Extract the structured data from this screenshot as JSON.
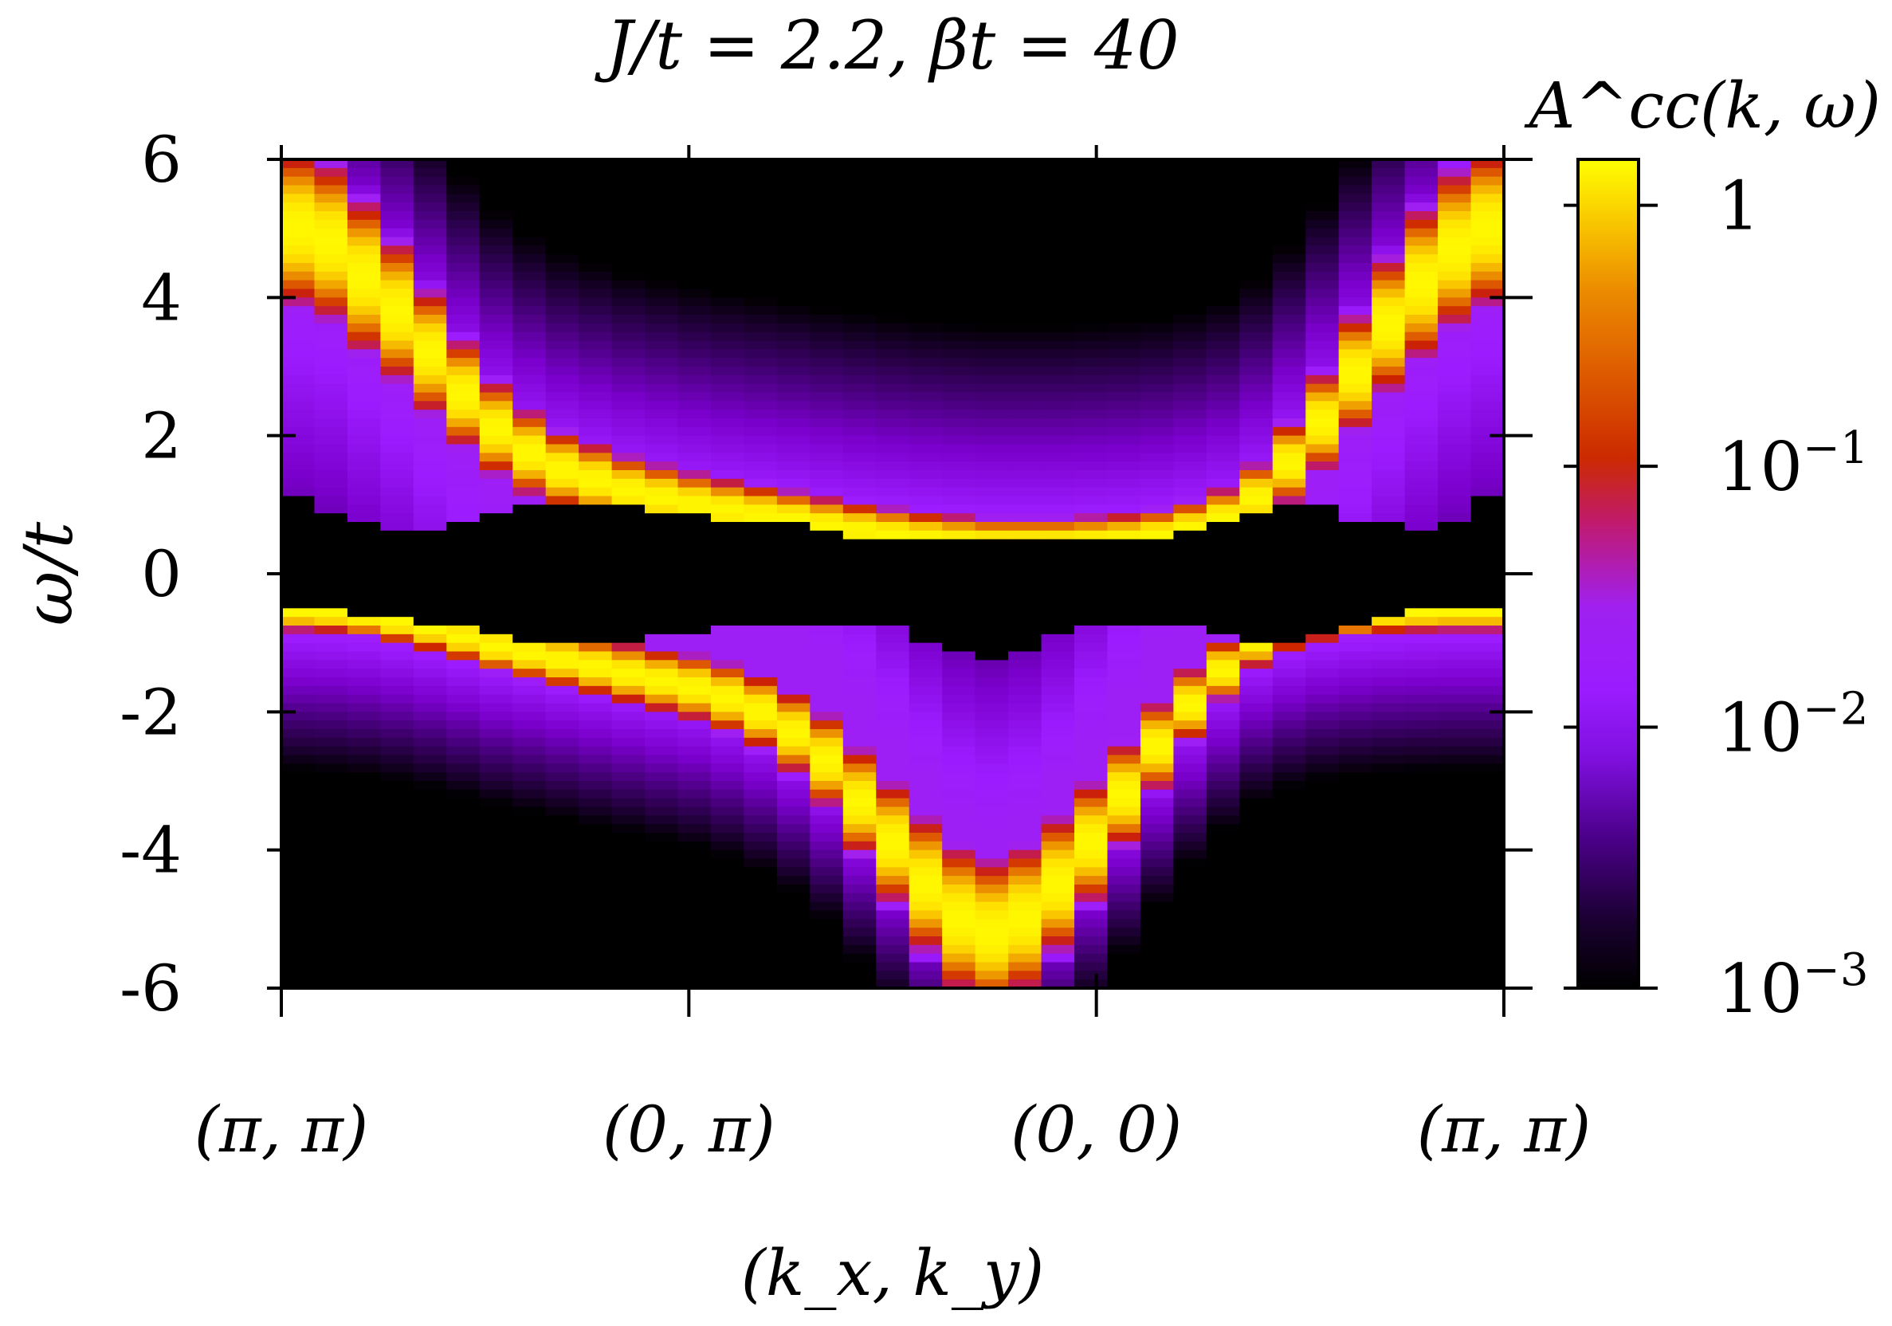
{
  "chart_data": {
    "type": "heatmap",
    "title": "J/t = 2.2, βt = 40",
    "xlabel": "(k_x, k_y)",
    "ylabel": "ω/t",
    "colorbar_label": "A^cc(k, ω)",
    "x_tick_labels": [
      "(π, π)",
      "(0, π)",
      "(0, 0)",
      "(π, π)"
    ],
    "x_path_segments": [
      12,
      12,
      12
    ],
    "y_ticks": [
      6,
      4,
      2,
      0,
      -2,
      -4,
      -6
    ],
    "y_tick_labels": [
      "6",
      "4",
      "2",
      "0",
      "-2",
      "-4",
      "-6"
    ],
    "ylim": [
      -6,
      6
    ],
    "colorbar_scale": "log",
    "colorbar_range": [
      0.001,
      1.5
    ],
    "colorbar_ticks": [
      1,
      0.1,
      0.01,
      0.001
    ],
    "colorbar_tick_labels": [
      {
        "base": "1",
        "exp": ""
      },
      {
        "base": "10",
        "exp": "−1"
      },
      {
        "base": "10",
        "exp": "−2"
      },
      {
        "base": "10",
        "exp": "−3"
      }
    ],
    "colormap": [
      "#000000",
      "#3a0066",
      "#7a00cc",
      "#9c1cff",
      "#a020f0",
      "#c01a66",
      "#cc2200",
      "#e06000",
      "#f0a000",
      "#ffe000",
      "#ffff00"
    ],
    "upper_band_peak_omega": [
      5.0,
      4.8,
      4.3,
      3.8,
      3.2,
      2.6,
      2.1,
      1.75,
      1.5,
      1.35,
      1.2,
      1.1,
      1.0,
      0.92,
      0.85,
      0.78,
      0.7,
      0.63,
      0.57,
      0.52,
      0.48,
      0.45,
      0.45,
      0.45,
      0.47,
      0.5,
      0.55,
      0.65,
      0.8,
      1.1,
      1.6,
      2.2,
      2.9,
      3.6,
      4.2,
      4.7,
      5.0
    ],
    "lower_band_peak_omega": [
      -0.55,
      -0.57,
      -0.62,
      -0.7,
      -0.8,
      -0.92,
      -1.05,
      -1.15,
      -1.25,
      -1.35,
      -1.45,
      -1.55,
      -1.65,
      -1.8,
      -2.0,
      -2.3,
      -2.7,
      -3.3,
      -3.9,
      -4.5,
      -5.0,
      -5.2,
      -5.0,
      -4.5,
      -3.9,
      -3.2,
      -2.5,
      -1.9,
      -1.4,
      -1.0,
      -0.8,
      -0.68,
      -0.62,
      -0.58,
      -0.56,
      -0.55,
      -0.55
    ],
    "gap_upper_edge_omega": [
      1.1,
      0.9,
      0.75,
      0.65,
      0.6,
      0.7,
      0.85,
      0.95,
      1.0,
      1.0,
      0.95,
      0.9,
      0.85,
      0.8,
      0.75,
      0.7,
      0.6,
      0.55,
      0.5,
      0.47,
      0.45,
      0.45,
      0.45,
      0.45,
      0.47,
      0.5,
      0.55,
      0.65,
      0.8,
      0.9,
      1.0,
      0.95,
      0.8,
      0.7,
      0.65,
      0.8,
      1.1
    ],
    "gap_lower_edge_omega": [
      -0.5,
      -0.55,
      -0.6,
      -0.65,
      -0.7,
      -0.8,
      -0.9,
      -0.95,
      -1.0,
      -1.0,
      -0.95,
      -0.9,
      -0.85,
      -0.8,
      -0.75,
      -0.7,
      -0.72,
      -0.75,
      -0.8,
      -0.95,
      -1.15,
      -1.2,
      -1.1,
      -0.9,
      -0.75,
      -0.72,
      -0.75,
      -0.8,
      -0.85,
      -0.95,
      -0.95,
      -0.85,
      -0.7,
      -0.6,
      -0.55,
      -0.5,
      -0.5
    ]
  }
}
